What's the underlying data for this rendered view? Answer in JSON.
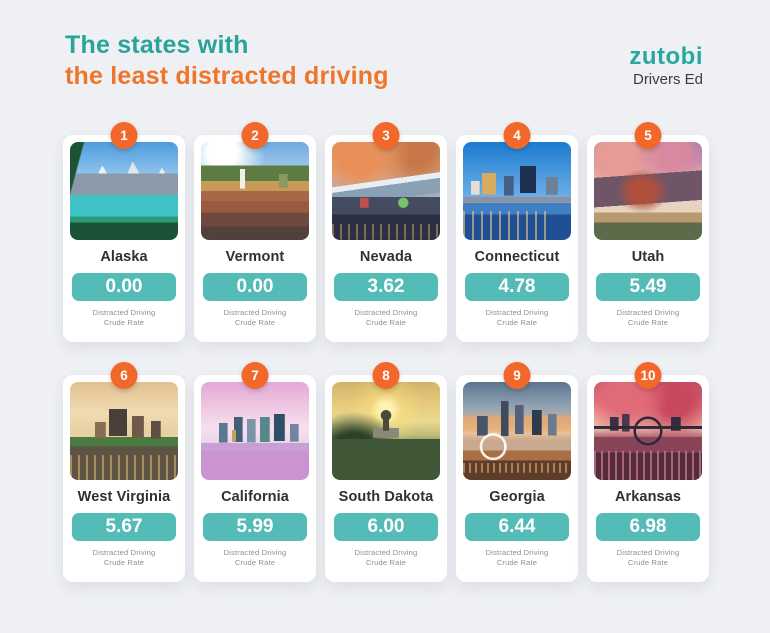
{
  "header": {
    "title_line1": "The states with",
    "title_line2": "the least distracted driving",
    "logo_brand": "zutobi",
    "logo_sub": "Drivers Ed"
  },
  "caption": {
    "line1": "Distracted Driving",
    "line2": "Crude Rate"
  },
  "colors": {
    "page_background": "#eef0f4",
    "title_teal": "#2aa39b",
    "title_orange": "#f0752c",
    "badge_orange": "#f2682a",
    "value_box_teal": "#54bbb6",
    "logo_teal": "#29a8a2",
    "state_text": "#303030",
    "caption_gray": "#8e8e8e"
  },
  "cards": [
    {
      "rank": "1",
      "name": "Alaska",
      "value": "0.00",
      "photo": "snowy-mountains-turquoise-lake"
    },
    {
      "rank": "2",
      "name": "Vermont",
      "value": "0.00",
      "photo": "autumn-village-church-steeple"
    },
    {
      "rank": "3",
      "name": "Nevada",
      "value": "3.62",
      "photo": "reno-skyline-dusk-mountains"
    },
    {
      "rank": "4",
      "name": "Connecticut",
      "value": "4.78",
      "photo": "hartford-skyline-river-reflection"
    },
    {
      "rank": "5",
      "name": "Utah",
      "value": "5.49",
      "photo": "park-city-mountains-sunset"
    },
    {
      "rank": "6",
      "name": "West Virginia",
      "value": "5.67",
      "photo": "charleston-riverfront-golden-sky"
    },
    {
      "rank": "7",
      "name": "California",
      "value": "5.99",
      "photo": "san-diego-skyline-pink-sky"
    },
    {
      "rank": "8",
      "name": "South Dakota",
      "value": "6.00",
      "photo": "pierre-capitol-dome-sunset"
    },
    {
      "rank": "9",
      "name": "Georgia",
      "value": "6.44",
      "photo": "atlanta-skyline-ferris-wheel"
    },
    {
      "rank": "10",
      "name": "Arkansas",
      "value": "6.98",
      "photo": "little-rock-bridge-sunset-river"
    }
  ],
  "chart_data": {
    "type": "table",
    "title": "The states with the least distracted driving",
    "categories": [
      "Alaska",
      "Vermont",
      "Nevada",
      "Connecticut",
      "Utah",
      "West Virginia",
      "California",
      "South Dakota",
      "Georgia",
      "Arkansas"
    ],
    "ranks": [
      1,
      2,
      3,
      4,
      5,
      6,
      7,
      8,
      9,
      10
    ],
    "values": [
      0.0,
      0.0,
      3.62,
      4.78,
      5.49,
      5.67,
      5.99,
      6.0,
      6.44,
      6.98
    ],
    "value_label": "Distracted Driving Crude Rate",
    "source_brand": "zutobi Drivers Ed"
  }
}
